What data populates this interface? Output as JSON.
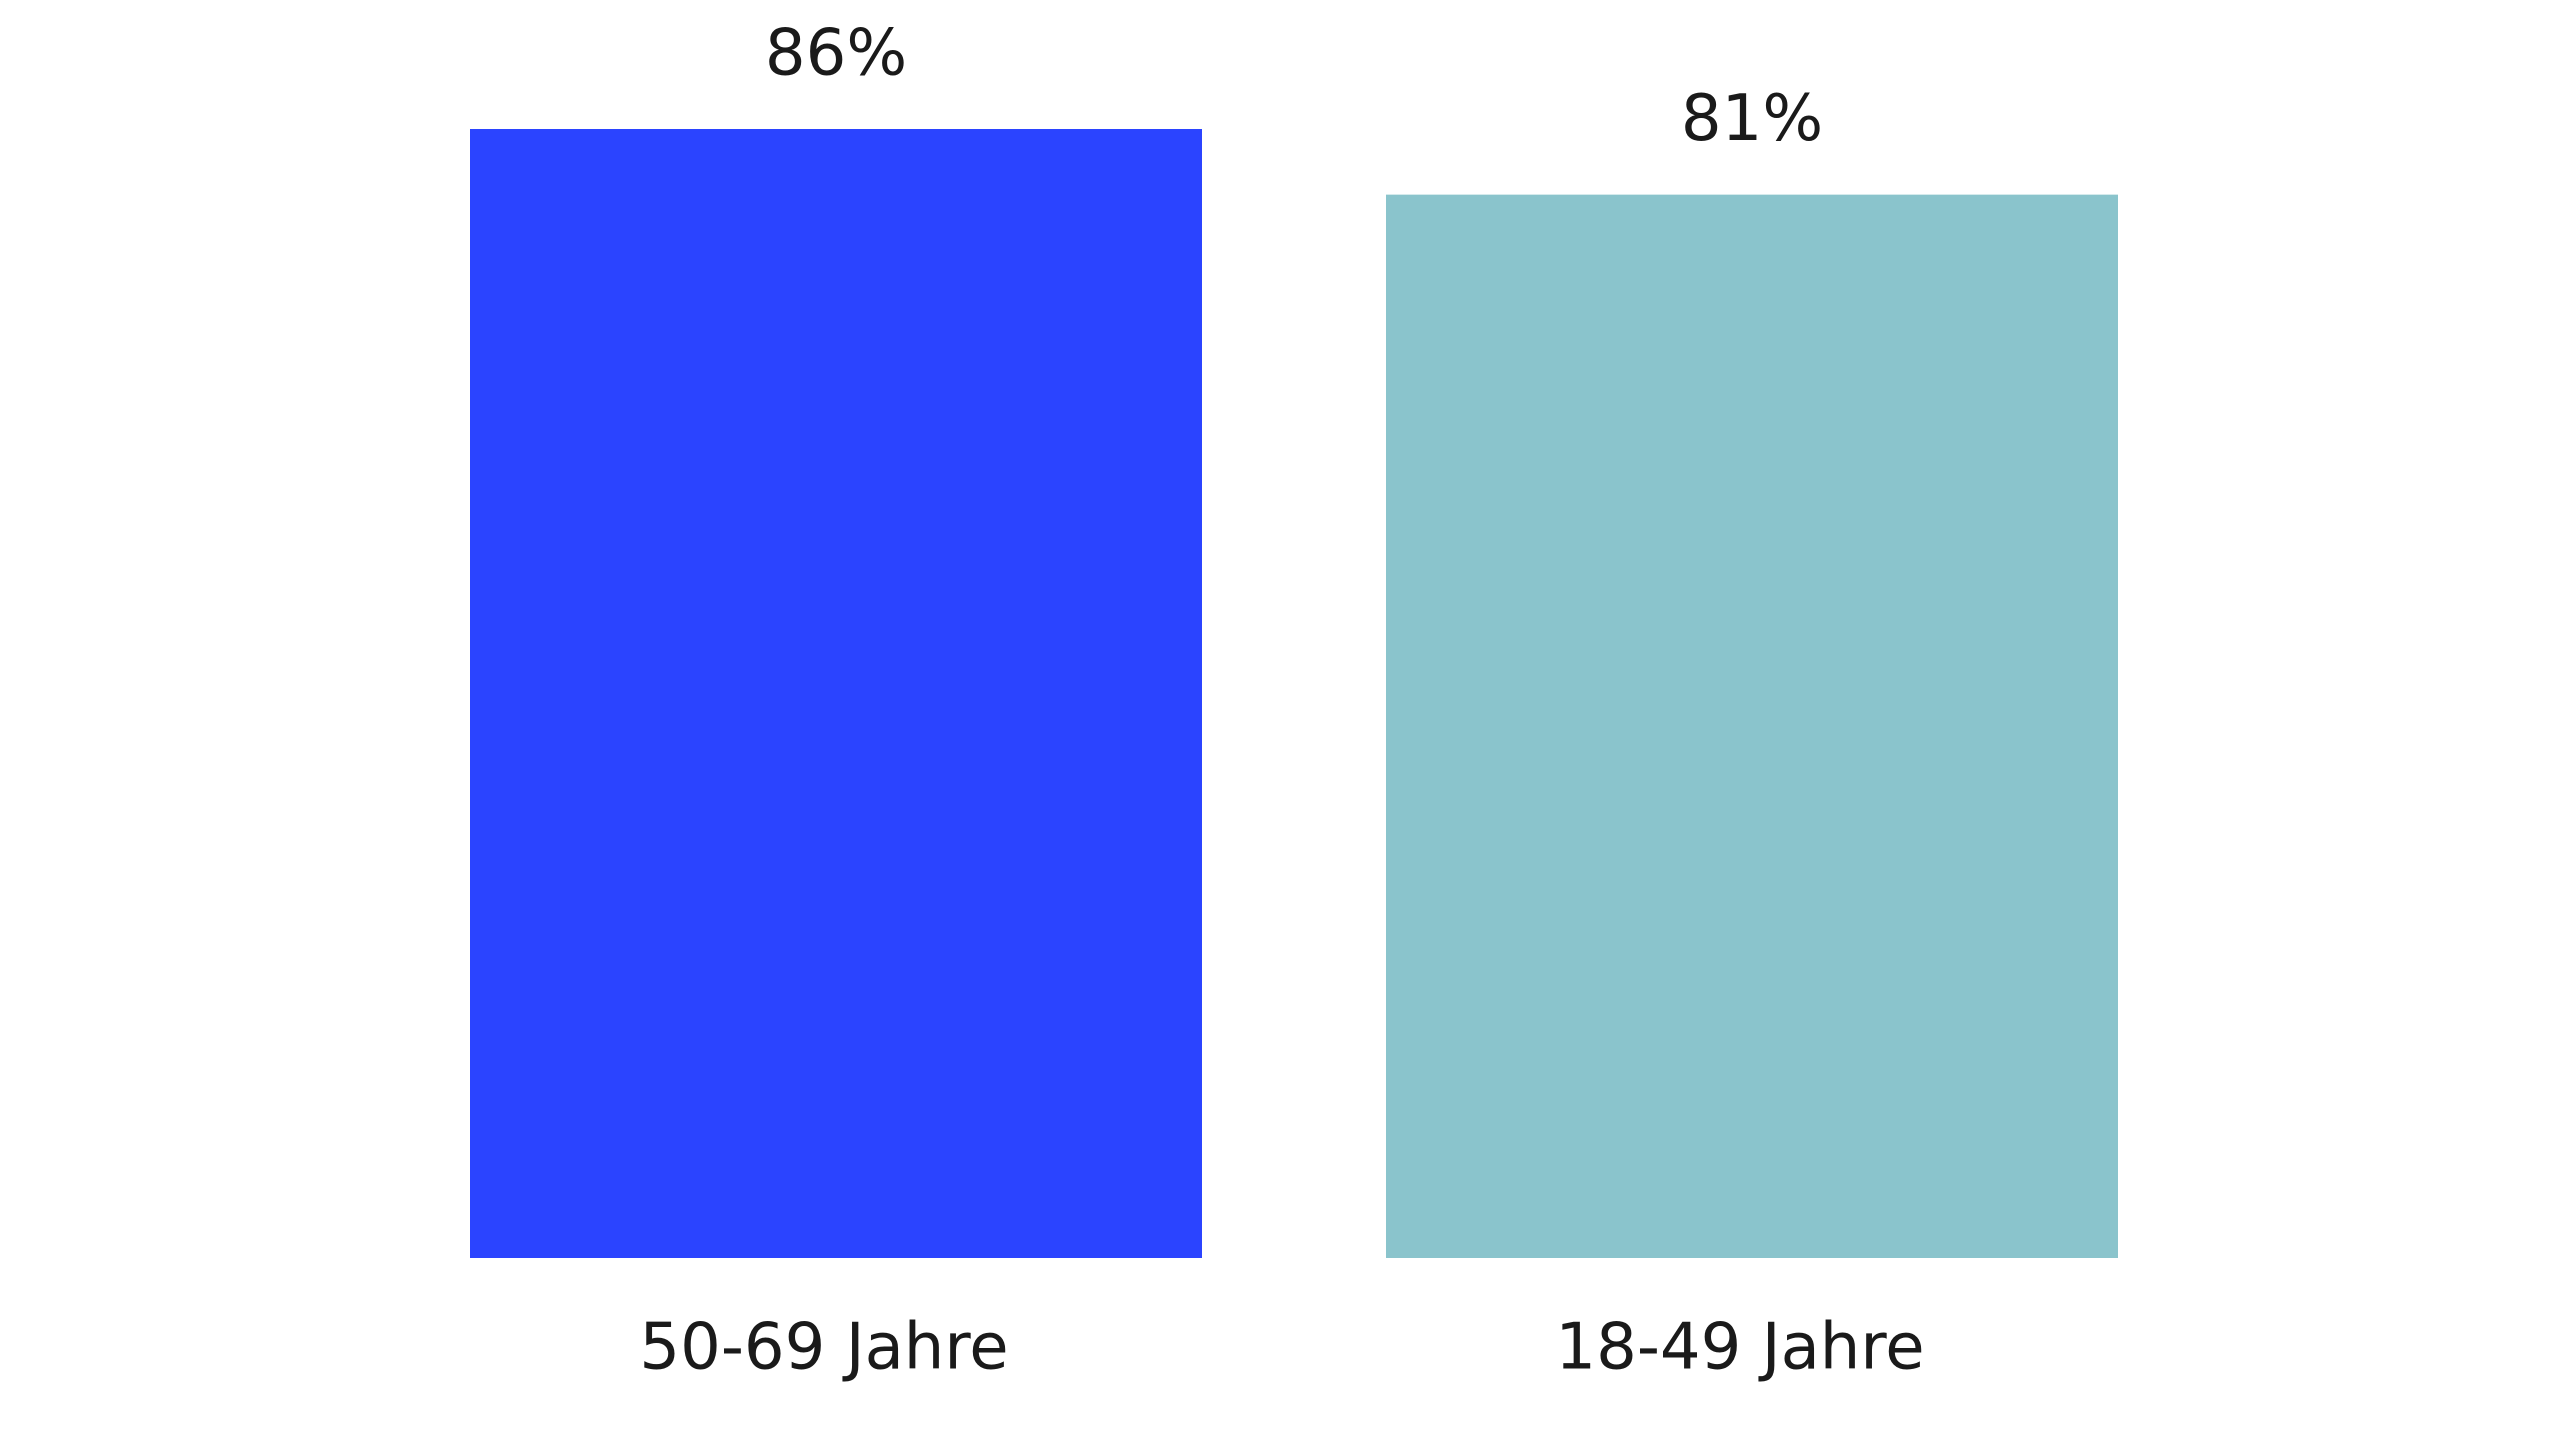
{
  "chart_data": {
    "type": "bar",
    "categories": [
      "50-69 Jahre",
      "18-49 Jahre"
    ],
    "values": [
      86,
      81
    ],
    "value_labels": [
      "86%",
      "81%"
    ],
    "colors": [
      "#2b44ff",
      "#8ac4cc"
    ]
  }
}
